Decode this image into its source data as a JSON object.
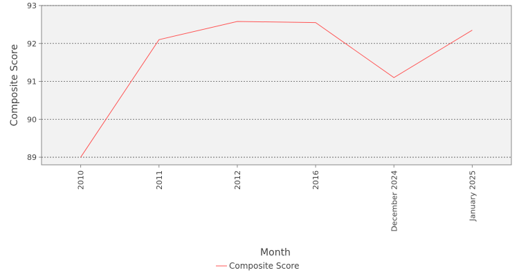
{
  "chart_data": {
    "type": "line",
    "categories": [
      "2010",
      "2011",
      "2012",
      "2016",
      "December 2024",
      "January 2025"
    ],
    "series": [
      {
        "name": "Composite Score",
        "values": [
          89.0,
          92.1,
          92.58,
          92.55,
          91.1,
          92.35
        ],
        "color": "#ff5555"
      }
    ],
    "xlabel": "Month",
    "ylabel": "Composite Score",
    "ylim": [
      88.8,
      93.0
    ],
    "yticks": [
      89,
      90,
      91,
      92,
      93
    ],
    "grid": true,
    "legend_position": "bottom",
    "plot_background": "#f2f2f2"
  }
}
